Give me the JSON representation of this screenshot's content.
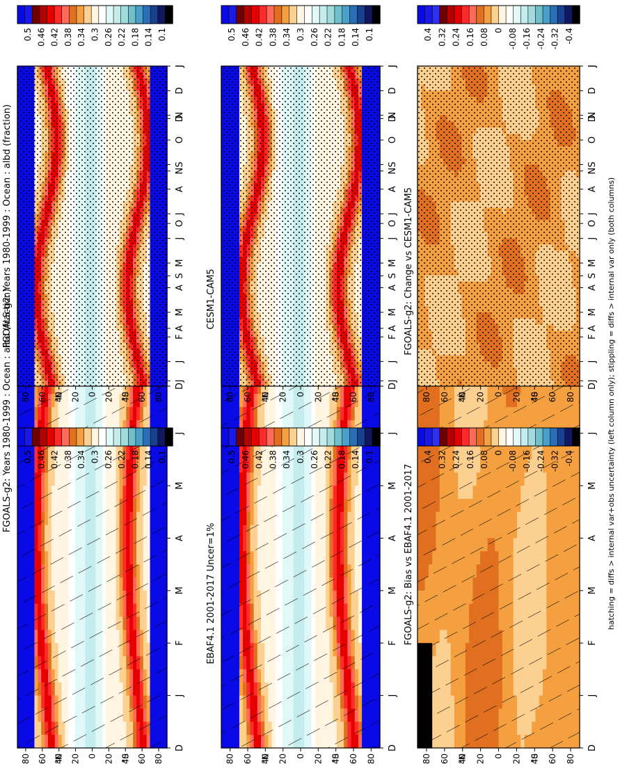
{
  "footer_note": "hatching = diffs > internal var+obs uncertainty (left column only); stippling = diffs > internal var only (both columns)",
  "x_tick_labels": [
    "D",
    "J",
    "F",
    "M",
    "A",
    "M",
    "J",
    "J",
    "A",
    "S",
    "O",
    "N",
    "D",
    "J"
  ],
  "y_tick_labels": [
    "80",
    "60",
    "40",
    "20",
    "0",
    "20",
    "40",
    "60",
    "80"
  ],
  "hemisphere_labels": {
    "north": "°N",
    "south": "°S"
  },
  "abs_levels": [
    "0.5",
    "0.46",
    "0.42",
    "0.38",
    "0.34",
    "0.3",
    "0.26",
    "0.22",
    "0.18",
    "0.14",
    "0.1"
  ],
  "diff_levels": [
    "0.4",
    "0.32",
    "0.24",
    "0.16",
    "0.08",
    "0",
    "-0.08",
    "-0.16",
    "-0.24",
    "-0.32",
    "-0.4"
  ],
  "abs_colors": [
    "#0a0ae6",
    "#1a1ae6",
    "#6e0000",
    "#b30000",
    "#e60000",
    "#ff2a2a",
    "#ff6a5a",
    "#e07020",
    "#f4a040",
    "#fbd090",
    "#fff5e0",
    "#ffffff",
    "#e0f8f8",
    "#c4ecec",
    "#a0dcdc",
    "#70c0cc",
    "#4aa0c8",
    "#2a70b8",
    "#1a4090",
    "#101860",
    "#000000"
  ],
  "diff_colors": [
    "#0a0ae6",
    "#1a1ae6",
    "#3030f0",
    "#6e0000",
    "#b30000",
    "#e60000",
    "#ff2a2a",
    "#ff6a5a",
    "#e07020",
    "#f4a040",
    "#fbd090",
    "#fff5e0",
    "#ffffff",
    "#e0f8f8",
    "#c4ecec",
    "#a0dcdc",
    "#70c0cc",
    "#4aa0c8",
    "#2a70b8",
    "#1a4090",
    "#101860",
    "#000000"
  ],
  "panels": {
    "fgoals_obs": {
      "title": "FGOALS-g2: Years 1980-1999 : Ocean : albd (fraction)",
      "kind": "abs"
    },
    "ebaf": {
      "title": "EBAF4.1 2001-2017 Uncer=1%",
      "kind": "abs"
    },
    "bias": {
      "title": "FGOALS-g2: Bias vs EBAF4.1 2001-2017",
      "kind": "diff"
    },
    "fgoals_model": {
      "title": "FGOALS-g2: Years 1980-1999 : Ocean : albd (fraction)",
      "kind": "abs"
    },
    "cesm": {
      "title": "CESM1-CAM5",
      "kind": "abs"
    },
    "change": {
      "title": "FGOALS-g2: Change vs CESM1-CAM5",
      "kind": "diff"
    }
  },
  "chart_data": {
    "type": "heatmap",
    "x": [
      "D",
      "J",
      "F",
      "M",
      "A",
      "M",
      "J",
      "J",
      "A",
      "S",
      "O",
      "N",
      "D",
      "J"
    ],
    "y_ticks": [
      80,
      60,
      40,
      20,
      0,
      -20,
      -40,
      -60,
      -80
    ],
    "abs_colorbar_levels": [
      0.5,
      0.46,
      0.42,
      0.38,
      0.34,
      0.3,
      0.26,
      0.22,
      0.18,
      0.14,
      0.1
    ],
    "diff_colorbar_levels": [
      0.4,
      0.32,
      0.24,
      0.16,
      0.08,
      0,
      -0.08,
      -0.16,
      -0.24,
      -0.32,
      -0.4
    ]
  }
}
